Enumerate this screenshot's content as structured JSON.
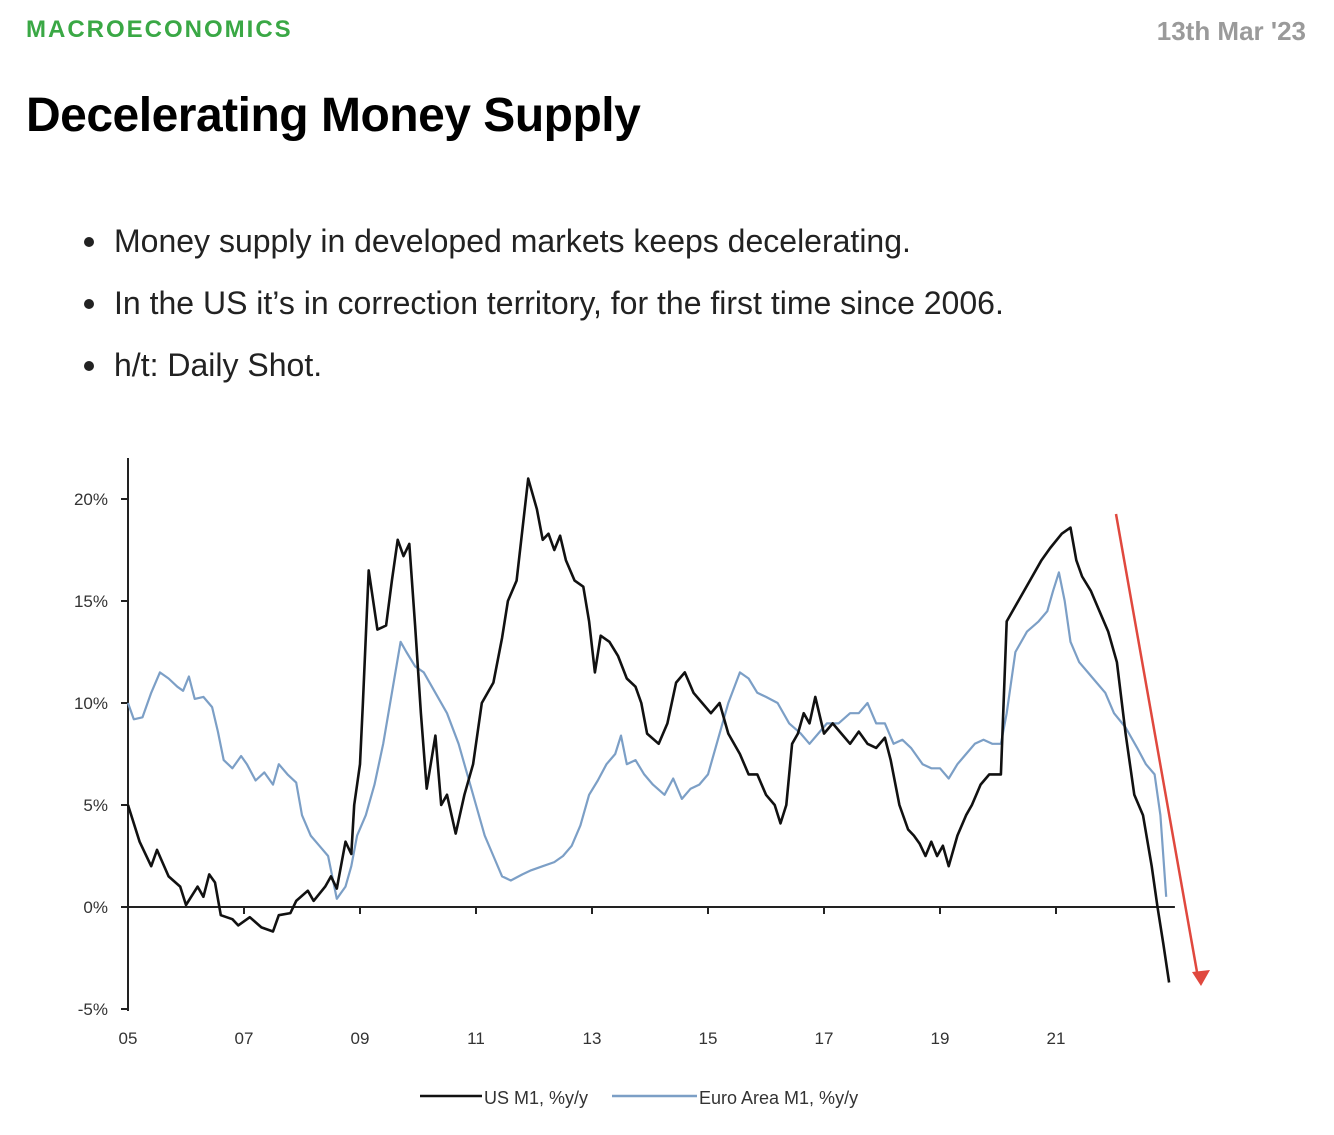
{
  "header": {
    "category": "MACROECONOMICS",
    "date": "13th Mar '23"
  },
  "post": {
    "title": "Decelerating Money Supply",
    "bullets": [
      "Money supply in developed markets keeps decelerating.",
      "In the US it’s in correction territory, for the first time since 2006.",
      "h/t: Daily Shot."
    ]
  },
  "colors": {
    "category": "#3aa845",
    "us_series": "#111111",
    "euro_series": "#7c9fc6",
    "arrow": "#e0483e"
  },
  "chart_data": {
    "type": "line",
    "title": "",
    "xlabel": "",
    "ylabel": "",
    "xlim": [
      2005,
      2023.5
    ],
    "ylim": [
      -5,
      21
    ],
    "yticks": [
      20,
      15,
      10,
      5,
      0,
      -5
    ],
    "ytick_labels": [
      "20%",
      "15%",
      "10%",
      "5%",
      "0%",
      "-5%"
    ],
    "xticks": [
      2005,
      2007,
      2009,
      2011,
      2013,
      2015,
      2017,
      2019,
      2021
    ],
    "xtick_labels": [
      "05",
      "07",
      "09",
      "11",
      "13",
      "15",
      "17",
      "19",
      "21"
    ],
    "legend_position": "bottom",
    "annotation": "red downward arrow near end of series",
    "series": [
      {
        "name": "US M1, %y/y",
        "color": "#111111",
        "points": [
          [
            2005.0,
            5.0
          ],
          [
            2005.2,
            3.2
          ],
          [
            2005.4,
            2.0
          ],
          [
            2005.5,
            2.8
          ],
          [
            2005.7,
            1.5
          ],
          [
            2005.9,
            1.0
          ],
          [
            2006.0,
            0.1
          ],
          [
            2006.2,
            1.0
          ],
          [
            2006.3,
            0.5
          ],
          [
            2006.4,
            1.6
          ],
          [
            2006.5,
            1.2
          ],
          [
            2006.6,
            -0.4
          ],
          [
            2006.8,
            -0.6
          ],
          [
            2006.9,
            -0.9
          ],
          [
            2007.1,
            -0.5
          ],
          [
            2007.3,
            -1.0
          ],
          [
            2007.5,
            -1.2
          ],
          [
            2007.6,
            -0.4
          ],
          [
            2007.8,
            -0.3
          ],
          [
            2007.9,
            0.3
          ],
          [
            2008.1,
            0.8
          ],
          [
            2008.2,
            0.3
          ],
          [
            2008.4,
            1.0
          ],
          [
            2008.5,
            1.5
          ],
          [
            2008.6,
            0.9
          ],
          [
            2008.75,
            3.2
          ],
          [
            2008.85,
            2.6
          ],
          [
            2008.9,
            5.0
          ],
          [
            2009.0,
            7.0
          ],
          [
            2009.05,
            10.0
          ],
          [
            2009.15,
            16.5
          ],
          [
            2009.3,
            13.6
          ],
          [
            2009.45,
            13.8
          ],
          [
            2009.55,
            16.0
          ],
          [
            2009.65,
            18.0
          ],
          [
            2009.75,
            17.2
          ],
          [
            2009.85,
            17.8
          ],
          [
            2009.95,
            13.8
          ],
          [
            2010.05,
            9.5
          ],
          [
            2010.15,
            5.8
          ],
          [
            2010.3,
            8.4
          ],
          [
            2010.4,
            5.0
          ],
          [
            2010.5,
            5.5
          ],
          [
            2010.65,
            3.6
          ],
          [
            2010.8,
            5.5
          ],
          [
            2010.95,
            7.0
          ],
          [
            2011.1,
            10.0
          ],
          [
            2011.3,
            11.0
          ],
          [
            2011.45,
            13.2
          ],
          [
            2011.55,
            15.0
          ],
          [
            2011.7,
            16.0
          ],
          [
            2011.8,
            18.5
          ],
          [
            2011.9,
            21.0
          ],
          [
            2012.05,
            19.5
          ],
          [
            2012.15,
            18.0
          ],
          [
            2012.25,
            18.3
          ],
          [
            2012.35,
            17.5
          ],
          [
            2012.45,
            18.2
          ],
          [
            2012.55,
            17.0
          ],
          [
            2012.7,
            16.0
          ],
          [
            2012.85,
            15.7
          ],
          [
            2012.95,
            14.0
          ],
          [
            2013.05,
            11.5
          ],
          [
            2013.15,
            13.3
          ],
          [
            2013.3,
            13.0
          ],
          [
            2013.45,
            12.3
          ],
          [
            2013.6,
            11.2
          ],
          [
            2013.75,
            10.8
          ],
          [
            2013.85,
            10.0
          ],
          [
            2013.95,
            8.5
          ],
          [
            2014.15,
            8.0
          ],
          [
            2014.3,
            9.0
          ],
          [
            2014.45,
            11.0
          ],
          [
            2014.6,
            11.5
          ],
          [
            2014.75,
            10.5
          ],
          [
            2014.9,
            10.0
          ],
          [
            2015.05,
            9.5
          ],
          [
            2015.2,
            10.0
          ],
          [
            2015.35,
            8.5
          ],
          [
            2015.55,
            7.5
          ],
          [
            2015.7,
            6.5
          ],
          [
            2015.85,
            6.5
          ],
          [
            2016.0,
            5.5
          ],
          [
            2016.15,
            5.0
          ],
          [
            2016.25,
            4.1
          ],
          [
            2016.35,
            5.0
          ],
          [
            2016.45,
            8.0
          ],
          [
            2016.55,
            8.5
          ],
          [
            2016.65,
            9.5
          ],
          [
            2016.75,
            9.0
          ],
          [
            2016.85,
            10.3
          ],
          [
            2017.0,
            8.5
          ],
          [
            2017.15,
            9.0
          ],
          [
            2017.3,
            8.5
          ],
          [
            2017.45,
            8.0
          ],
          [
            2017.6,
            8.6
          ],
          [
            2017.75,
            8.0
          ],
          [
            2017.9,
            7.8
          ],
          [
            2018.05,
            8.3
          ],
          [
            2018.15,
            7.2
          ],
          [
            2018.3,
            5.0
          ],
          [
            2018.45,
            3.8
          ],
          [
            2018.55,
            3.5
          ],
          [
            2018.65,
            3.1
          ],
          [
            2018.75,
            2.5
          ],
          [
            2018.85,
            3.2
          ],
          [
            2018.95,
            2.5
          ],
          [
            2019.05,
            3.0
          ],
          [
            2019.15,
            2.0
          ],
          [
            2019.3,
            3.5
          ],
          [
            2019.45,
            4.5
          ],
          [
            2019.55,
            5.0
          ],
          [
            2019.7,
            6.0
          ],
          [
            2019.85,
            6.5
          ],
          [
            2020.05,
            6.5
          ],
          [
            2020.15,
            14.0
          ],
          [
            2020.35,
            15.0
          ],
          [
            2020.55,
            16.0
          ],
          [
            2020.75,
            17.0
          ],
          [
            2020.9,
            17.6
          ],
          [
            2021.1,
            18.3
          ],
          [
            2021.25,
            18.6
          ],
          [
            2021.35,
            17.0
          ],
          [
            2021.45,
            16.2
          ],
          [
            2021.6,
            15.5
          ],
          [
            2021.75,
            14.5
          ],
          [
            2021.9,
            13.5
          ],
          [
            2022.05,
            12.0
          ],
          [
            2022.2,
            8.5
          ],
          [
            2022.35,
            5.5
          ],
          [
            2022.5,
            4.5
          ],
          [
            2022.65,
            2.0
          ],
          [
            2022.75,
            0.0
          ],
          [
            2022.85,
            -1.8
          ],
          [
            2022.95,
            -3.7
          ]
        ]
      },
      {
        "name": "Euro Area M1, %y/y",
        "color": "#7c9fc6",
        "points": [
          [
            2005.0,
            10.0
          ],
          [
            2005.1,
            9.2
          ],
          [
            2005.25,
            9.3
          ],
          [
            2005.4,
            10.5
          ],
          [
            2005.55,
            11.5
          ],
          [
            2005.7,
            11.2
          ],
          [
            2005.85,
            10.8
          ],
          [
            2005.95,
            10.6
          ],
          [
            2006.05,
            11.3
          ],
          [
            2006.15,
            10.2
          ],
          [
            2006.3,
            10.3
          ],
          [
            2006.45,
            9.8
          ],
          [
            2006.55,
            8.6
          ],
          [
            2006.65,
            7.2
          ],
          [
            2006.8,
            6.8
          ],
          [
            2006.95,
            7.4
          ],
          [
            2007.05,
            7.0
          ],
          [
            2007.2,
            6.2
          ],
          [
            2007.35,
            6.6
          ],
          [
            2007.5,
            6.0
          ],
          [
            2007.6,
            7.0
          ],
          [
            2007.75,
            6.5
          ],
          [
            2007.9,
            6.1
          ],
          [
            2008.0,
            4.5
          ],
          [
            2008.15,
            3.5
          ],
          [
            2008.3,
            3.0
          ],
          [
            2008.45,
            2.5
          ],
          [
            2008.6,
            0.4
          ],
          [
            2008.75,
            1.0
          ],
          [
            2008.85,
            2.0
          ],
          [
            2008.95,
            3.5
          ],
          [
            2009.1,
            4.5
          ],
          [
            2009.25,
            6.0
          ],
          [
            2009.4,
            8.0
          ],
          [
            2009.55,
            10.5
          ],
          [
            2009.7,
            13.0
          ],
          [
            2009.8,
            12.5
          ],
          [
            2009.95,
            11.8
          ],
          [
            2010.1,
            11.5
          ],
          [
            2010.3,
            10.5
          ],
          [
            2010.5,
            9.5
          ],
          [
            2010.7,
            8.0
          ],
          [
            2010.9,
            6.0
          ],
          [
            2011.0,
            5.0
          ],
          [
            2011.15,
            3.5
          ],
          [
            2011.3,
            2.5
          ],
          [
            2011.45,
            1.5
          ],
          [
            2011.6,
            1.3
          ],
          [
            2011.8,
            1.6
          ],
          [
            2011.95,
            1.8
          ],
          [
            2012.15,
            2.0
          ],
          [
            2012.35,
            2.2
          ],
          [
            2012.5,
            2.5
          ],
          [
            2012.65,
            3.0
          ],
          [
            2012.8,
            4.0
          ],
          [
            2012.95,
            5.5
          ],
          [
            2013.1,
            6.2
          ],
          [
            2013.25,
            7.0
          ],
          [
            2013.4,
            7.5
          ],
          [
            2013.5,
            8.4
          ],
          [
            2013.6,
            7.0
          ],
          [
            2013.75,
            7.2
          ],
          [
            2013.9,
            6.5
          ],
          [
            2014.05,
            6.0
          ],
          [
            2014.25,
            5.5
          ],
          [
            2014.4,
            6.3
          ],
          [
            2014.55,
            5.3
          ],
          [
            2014.7,
            5.8
          ],
          [
            2014.85,
            6.0
          ],
          [
            2015.0,
            6.5
          ],
          [
            2015.15,
            8.0
          ],
          [
            2015.35,
            10.0
          ],
          [
            2015.55,
            11.5
          ],
          [
            2015.7,
            11.2
          ],
          [
            2015.85,
            10.5
          ],
          [
            2016.0,
            10.3
          ],
          [
            2016.2,
            10.0
          ],
          [
            2016.4,
            9.0
          ],
          [
            2016.6,
            8.5
          ],
          [
            2016.75,
            8.0
          ],
          [
            2016.9,
            8.5
          ],
          [
            2017.05,
            9.0
          ],
          [
            2017.25,
            9.0
          ],
          [
            2017.45,
            9.5
          ],
          [
            2017.6,
            9.5
          ],
          [
            2017.75,
            10.0
          ],
          [
            2017.9,
            9.0
          ],
          [
            2018.05,
            9.0
          ],
          [
            2018.2,
            8.0
          ],
          [
            2018.35,
            8.2
          ],
          [
            2018.5,
            7.8
          ],
          [
            2018.7,
            7.0
          ],
          [
            2018.85,
            6.8
          ],
          [
            2019.0,
            6.8
          ],
          [
            2019.15,
            6.3
          ],
          [
            2019.3,
            7.0
          ],
          [
            2019.45,
            7.5
          ],
          [
            2019.6,
            8.0
          ],
          [
            2019.75,
            8.2
          ],
          [
            2019.9,
            8.0
          ],
          [
            2020.05,
            8.0
          ],
          [
            2020.15,
            9.5
          ],
          [
            2020.3,
            12.5
          ],
          [
            2020.5,
            13.5
          ],
          [
            2020.7,
            14.0
          ],
          [
            2020.85,
            14.5
          ],
          [
            2020.95,
            15.5
          ],
          [
            2021.05,
            16.4
          ],
          [
            2021.15,
            15.0
          ],
          [
            2021.25,
            13.0
          ],
          [
            2021.4,
            12.0
          ],
          [
            2021.55,
            11.5
          ],
          [
            2021.7,
            11.0
          ],
          [
            2021.85,
            10.5
          ],
          [
            2022.0,
            9.5
          ],
          [
            2022.2,
            8.8
          ],
          [
            2022.4,
            7.8
          ],
          [
            2022.55,
            7.0
          ],
          [
            2022.7,
            6.5
          ],
          [
            2022.8,
            4.5
          ],
          [
            2022.9,
            0.5
          ]
        ]
      }
    ]
  }
}
